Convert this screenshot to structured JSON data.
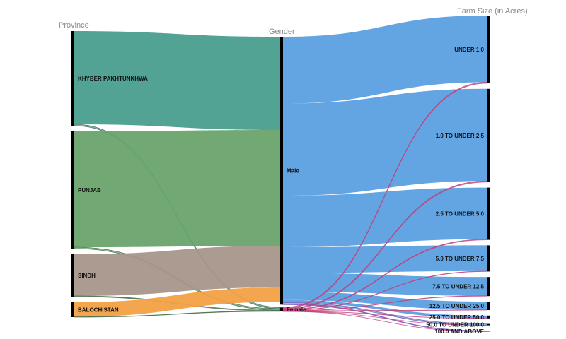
{
  "chart_data": {
    "type": "sankey",
    "column_headers": [
      "Province",
      "Gender",
      "Farm Size (in Acres)"
    ],
    "nodes": [
      {
        "id": "kp",
        "label": "KHYBER PAKHTUNKHWA",
        "column": 0,
        "color": "#4a9e8f"
      },
      {
        "id": "punjab",
        "label": "PUNJAB",
        "column": 0,
        "color": "#6aa36b"
      },
      {
        "id": "sindh",
        "label": "SINDH",
        "column": 0,
        "color": "#a8968b"
      },
      {
        "id": "balochistan",
        "label": "BALOCHISTAN",
        "column": 0,
        "color": "#f3a146"
      },
      {
        "id": "male",
        "label": "Male",
        "column": 1,
        "color": "#5b9fe0"
      },
      {
        "id": "female",
        "label": "Female",
        "column": 1,
        "color": "#c2407a"
      },
      {
        "id": "s1",
        "label": "UNDER 1.0",
        "column": 2,
        "color": "#5b9fe0"
      },
      {
        "id": "s2",
        "label": "1.0 TO UNDER 2.5",
        "column": 2,
        "color": "#5b9fe0"
      },
      {
        "id": "s3",
        "label": "2.5 TO UNDER 5.0",
        "column": 2,
        "color": "#5b9fe0"
      },
      {
        "id": "s4",
        "label": "5.0 TO UNDER 7.5",
        "column": 2,
        "color": "#5b9fe0"
      },
      {
        "id": "s5",
        "label": "7.5 TO UNDER 12.5",
        "column": 2,
        "color": "#5b9fe0"
      },
      {
        "id": "s6",
        "label": "12.5 TO UNDER 25.0",
        "column": 2,
        "color": "#5b9fe0"
      },
      {
        "id": "s7",
        "label": "25.0 TO UNDER 50.0",
        "column": 2,
        "color": "#5b9fe0"
      },
      {
        "id": "s8",
        "label": "50.0 TO UNDER 100.0",
        "column": 2,
        "color": "#5b9fe0"
      },
      {
        "id": "s9",
        "label": "100.0 AND ABOVE",
        "column": 2,
        "color": "#5b9fe0"
      }
    ],
    "links": [
      {
        "source": "kp",
        "target": "male",
        "value": 132
      },
      {
        "source": "kp",
        "target": "female",
        "value": 2
      },
      {
        "source": "punjab",
        "target": "male",
        "value": 164
      },
      {
        "source": "punjab",
        "target": "female",
        "value": 2
      },
      {
        "source": "sindh",
        "target": "male",
        "value": 59
      },
      {
        "source": "sindh",
        "target": "female",
        "value": 1
      },
      {
        "source": "balochistan",
        "target": "male",
        "value": 20.5
      },
      {
        "source": "balochistan",
        "target": "female",
        "value": 0.5
      },
      {
        "source": "male",
        "target": "s1",
        "value": 94.5
      },
      {
        "source": "male",
        "target": "s2",
        "value": 130.5
      },
      {
        "source": "male",
        "target": "s3",
        "value": 73
      },
      {
        "source": "male",
        "target": "s4",
        "value": 36.5
      },
      {
        "source": "male",
        "target": "s5",
        "value": 26.5
      },
      {
        "source": "male",
        "target": "s6",
        "value": 11.7
      },
      {
        "source": "male",
        "target": "s7",
        "value": 3.8
      },
      {
        "source": "male",
        "target": "s8",
        "value": 1.9
      },
      {
        "source": "male",
        "target": "s9",
        "value": 0.9
      },
      {
        "source": "female",
        "target": "s1",
        "value": 1.5
      },
      {
        "source": "female",
        "target": "s2",
        "value": 1.5
      },
      {
        "source": "female",
        "target": "s3",
        "value": 1
      },
      {
        "source": "female",
        "target": "s4",
        "value": 0.5
      },
      {
        "source": "female",
        "target": "s5",
        "value": 0.5
      },
      {
        "source": "female",
        "target": "s6",
        "value": 0.3
      },
      {
        "source": "female",
        "target": "s7",
        "value": 0.2
      },
      {
        "source": "female",
        "target": "s8",
        "value": 0.1
      },
      {
        "source": "female",
        "target": "s9",
        "value": 0.1
      }
    ]
  }
}
